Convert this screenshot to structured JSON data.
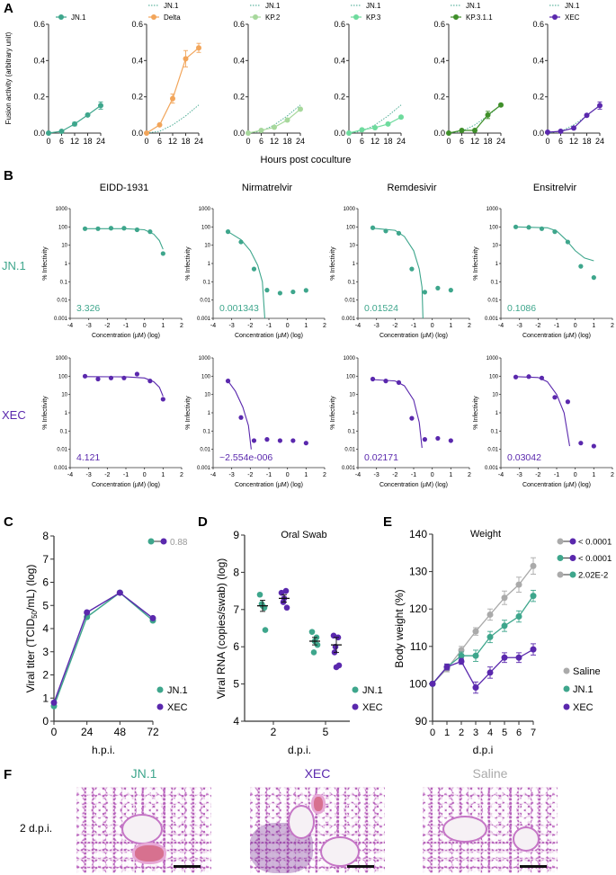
{
  "panel_labels": {
    "A": "A",
    "B": "B",
    "C": "C",
    "D": "D",
    "E": "E",
    "F": "F"
  },
  "colors": {
    "JN.1": "#3ea68c",
    "Delta": "#f2a55a",
    "KP.2": "#a7d89c",
    "KP.3": "#6edb9d",
    "KP.3.1.1": "#3f8f2a",
    "XEC": "#5a28ad",
    "Saline": "#aaaaaa"
  },
  "chart_data": [
    {
      "panel": "A",
      "type": "line",
      "ylabel": "Fusion activity (arbitrary unit)",
      "xlabel": "Hours post coculture",
      "x": [
        0,
        6,
        12,
        18,
        24
      ],
      "xticks": [
        "0",
        "6",
        "12",
        "18",
        "24"
      ],
      "ylim": [
        0,
        0.6
      ],
      "yticks": [
        "0.0",
        "0.2",
        "0.4",
        "0.6"
      ],
      "reference": {
        "name": "JN.1",
        "style": "dotted",
        "values": [
          0,
          0.01,
          0.045,
          0.095,
          0.155
        ]
      },
      "series": [
        {
          "name": "JN.1",
          "values": [
            0,
            0.01,
            0.05,
            0.1,
            0.152
          ],
          "errors": [
            0,
            0.004,
            0.01,
            0.005,
            0.02
          ],
          "show_reference": false
        },
        {
          "name": "Delta",
          "values": [
            0,
            0.045,
            0.19,
            0.41,
            0.47
          ],
          "errors": [
            0,
            0.005,
            0.025,
            0.045,
            0.025
          ],
          "show_reference": true
        },
        {
          "name": "KP.2",
          "values": [
            0,
            0.015,
            0.032,
            0.072,
            0.132
          ],
          "errors": [
            0,
            0.004,
            0.004,
            0.005,
            0.006
          ],
          "show_reference": true
        },
        {
          "name": "KP.3",
          "values": [
            0,
            0.018,
            0.03,
            0.05,
            0.088
          ],
          "errors": [
            0,
            0.003,
            0.003,
            0.004,
            0.005
          ],
          "show_reference": true
        },
        {
          "name": "KP.3.1.1",
          "values": [
            0,
            0.015,
            0.015,
            0.1,
            0.155
          ],
          "errors": [
            0,
            0.003,
            0.003,
            0.02,
            0.006
          ],
          "show_reference": true
        },
        {
          "name": "XEC",
          "values": [
            0.005,
            0.01,
            0.028,
            0.098,
            0.152
          ],
          "errors": [
            0,
            0.003,
            0.004,
            0.006,
            0.02
          ],
          "show_reference": true
        }
      ]
    },
    {
      "panel": "B",
      "type": "scatter",
      "yscale": "log",
      "drugs": [
        "EIDD-1931",
        "Nirmatrelvir",
        "Remdesivir",
        "Ensitrelvir"
      ],
      "variants": [
        "JN.1",
        "XEC"
      ],
      "xlabel": "Concentration (µM) (log)",
      "ylabel": "% Infectivity",
      "xlim": [
        -4,
        2
      ],
      "xticks": [
        "-4",
        "-3",
        "-2",
        "-1",
        "0",
        "1",
        "2"
      ],
      "ylim": [
        0.001,
        1000
      ],
      "yticks": [
        "0.001",
        "0.01",
        "0.1",
        "1",
        "10",
        "100",
        "1000"
      ],
      "x": [
        -3.2,
        -2.5,
        -1.8,
        -1.1,
        -0.4,
        0.3,
        1.0
      ],
      "panels": [
        {
          "variant": "JN.1",
          "drug": "EIDD-1931",
          "ic50": "3.326",
          "values": [
            80,
            80,
            85,
            85,
            70,
            55,
            3.5
          ],
          "fit": [
            [
              -3.2,
              80
            ],
            [
              -1,
              80
            ],
            [
              0,
              70
            ],
            [
              0.5,
              40
            ],
            [
              0.8,
              18
            ],
            [
              1,
              6
            ]
          ]
        },
        {
          "variant": "JN.1",
          "drug": "Nirmatrelvir",
          "ic50": "0.001343",
          "values": [
            55,
            15,
            0.5,
            0.035,
            0.024,
            0.028,
            0.034
          ],
          "fit": [
            [
              -3.2,
              55
            ],
            [
              -2.5,
              20
            ],
            [
              -2,
              5
            ],
            [
              -1.6,
              0.8
            ],
            [
              -1.35,
              0.1
            ],
            [
              -1.22,
              0.001
            ]
          ]
        },
        {
          "variant": "JN.1",
          "drug": "Remdesivir",
          "ic50": "0.01524",
          "values": [
            90,
            60,
            45,
            0.5,
            0.027,
            0.045,
            0.035
          ],
          "fit": [
            [
              -3.2,
              85
            ],
            [
              -2,
              65
            ],
            [
              -1.5,
              30
            ],
            [
              -1,
              5
            ],
            [
              -0.7,
              0.5
            ],
            [
              -0.55,
              0.05
            ],
            [
              -0.5,
              0.001
            ]
          ]
        },
        {
          "variant": "JN.1",
          "drug": "Ensitrelvir",
          "ic50": "0.1086",
          "values": [
            100,
            95,
            80,
            55,
            15,
            0.7,
            0.17
          ],
          "fit": [
            [
              -3.2,
              100
            ],
            [
              -1.5,
              90
            ],
            [
              -1,
              60
            ],
            [
              -0.5,
              20
            ],
            [
              0,
              5
            ],
            [
              0.5,
              2
            ],
            [
              1,
              1.4
            ]
          ]
        },
        {
          "variant": "XEC",
          "drug": "EIDD-1931",
          "ic50": "4.121",
          "values": [
            100,
            70,
            80,
            80,
            130,
            55,
            5.5
          ],
          "fit": [
            [
              -3.2,
              95
            ],
            [
              -1,
              92
            ],
            [
              0,
              80
            ],
            [
              0.5,
              50
            ],
            [
              0.8,
              25
            ],
            [
              1,
              8
            ]
          ]
        },
        {
          "variant": "XEC",
          "drug": "Nirmatrelvir",
          "ic50": "~2.554e-006",
          "values": [
            55,
            0.55,
            0.03,
            0.035,
            0.03,
            0.03,
            0.022
          ],
          "fit": [
            [
              -3.2,
              55
            ],
            [
              -2.8,
              15
            ],
            [
              -2.4,
              2
            ],
            [
              -2.1,
              0.2
            ],
            [
              -1.95,
              0.01
            ]
          ]
        },
        {
          "variant": "XEC",
          "drug": "Remdesivir",
          "ic50": "0.02171",
          "values": [
            70,
            55,
            45,
            0.5,
            0.035,
            0.04,
            0.03
          ],
          "fit": [
            [
              -3.2,
              65
            ],
            [
              -2,
              55
            ],
            [
              -1.5,
              30
            ],
            [
              -1,
              5
            ],
            [
              -0.7,
              0.3
            ],
            [
              -0.55,
              0.012
            ]
          ]
        },
        {
          "variant": "XEC",
          "drug": "Ensitrelvir",
          "ic50": "0.03042",
          "values": [
            90,
            95,
            80,
            7,
            4,
            0.022,
            0.015
          ],
          "fit": [
            [
              -3.2,
              95
            ],
            [
              -2,
              85
            ],
            [
              -1.5,
              50
            ],
            [
              -1,
              10
            ],
            [
              -0.6,
              1
            ],
            [
              -0.3,
              0.015
            ]
          ]
        }
      ]
    },
    {
      "panel": "C",
      "type": "line",
      "ylabel_parts": [
        "Viral titer (TCID",
        "50",
        "/mL) (log)"
      ],
      "xlabel": "h.p.i.",
      "x": [
        0,
        24,
        48,
        72
      ],
      "xticks": [
        "0",
        "24",
        "48",
        "72"
      ],
      "ylim": [
        0,
        8
      ],
      "yticks": [
        "0",
        "1",
        "2",
        "3",
        "4",
        "5",
        "6",
        "7",
        "8"
      ],
      "series": [
        {
          "name": "JN.1",
          "values": [
            0.65,
            4.5,
            5.55,
            4.35
          ]
        },
        {
          "name": "XEC",
          "values": [
            0.8,
            4.7,
            5.55,
            4.45
          ]
        }
      ],
      "comparison": {
        "pair": [
          "JN.1",
          "XEC"
        ],
        "p_value": "0.88"
      }
    },
    {
      "panel": "D",
      "type": "scatter",
      "title": "Oral Swab",
      "ylabel": "Viral RNA (copies/swab) (log)",
      "xlabel": "d.p.i.",
      "categories": [
        "2",
        "5"
      ],
      "ylim": [
        4,
        9
      ],
      "yticks": [
        "4",
        "5",
        "6",
        "7",
        "8",
        "9"
      ],
      "series": [
        {
          "name": "JN.1",
          "points": [
            [
              7.4,
              7.05,
              7.15,
              6.45,
              7.1
            ],
            [
              6.4,
              6.25,
              5.85,
              6.05,
              6.15
            ]
          ],
          "mean": [
            7.1,
            6.15
          ],
          "sem": [
            0.15,
            0.1
          ]
        },
        {
          "name": "XEC",
          "points": [
            [
              7.45,
              7.5,
              7.2,
              7.05,
              7.3
            ],
            [
              6.3,
              6.25,
              6.0,
              5.5,
              5.45,
              5.85
            ]
          ],
          "mean": [
            7.3,
            6.05
          ],
          "sem": [
            0.1,
            0.2
          ]
        }
      ]
    },
    {
      "panel": "E",
      "type": "line",
      "title": "Weight",
      "ylabel": "Body weight (%)",
      "xlabel": "d.p.i",
      "x": [
        0,
        1,
        2,
        3,
        4,
        5,
        6,
        7
      ],
      "xticks": [
        "0",
        "1",
        "2",
        "3",
        "4",
        "5",
        "6",
        "7"
      ],
      "ylim": [
        90,
        140
      ],
      "yticks": [
        "90",
        "100",
        "110",
        "120",
        "130",
        "140"
      ],
      "series": [
        {
          "name": "Saline",
          "values": [
            100,
            104,
            109,
            114,
            118.5,
            123,
            126.5,
            131.5
          ],
          "errors": [
            0,
            0.8,
            1,
            1,
            1.5,
            1.8,
            2,
            2.2
          ]
        },
        {
          "name": "JN.1",
          "values": [
            100,
            104.5,
            107.5,
            107.5,
            112.5,
            115.5,
            118,
            123.5
          ],
          "errors": [
            0,
            0.8,
            1,
            1.5,
            1.5,
            1.5,
            1.5,
            1.5
          ]
        },
        {
          "name": "XEC",
          "values": [
            100,
            104.5,
            106,
            99,
            103,
            107,
            107,
            109.2
          ],
          "errors": [
            0,
            0.8,
            0.8,
            1.5,
            1.5,
            1.3,
            1.3,
            1.5
          ]
        }
      ],
      "comparisons": [
        {
          "pair": [
            "Saline",
            "XEC"
          ],
          "p_value": "< 0.0001"
        },
        {
          "pair": [
            "JN.1",
            "XEC"
          ],
          "p_value": "< 0.0001"
        },
        {
          "pair": [
            "Saline",
            "JN.1"
          ],
          "p_value": "2.02E-2"
        }
      ]
    }
  ],
  "histology": {
    "row_label": "2 d.p.i.",
    "columns": [
      {
        "title": "JN.1"
      },
      {
        "title": "XEC"
      },
      {
        "title": "Saline"
      }
    ]
  }
}
